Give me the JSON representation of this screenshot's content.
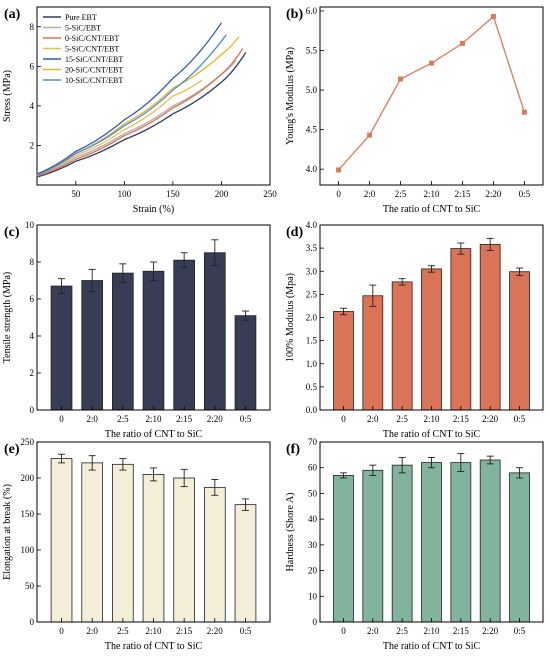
{
  "chart_data": [
    {
      "panel": "(a)",
      "type": "line",
      "xlabel": "Strain (%)",
      "ylabel": "Stress (MPa)",
      "xlim": [
        10,
        250
      ],
      "ylim": [
        0,
        9
      ],
      "xticks": [
        "50",
        "100",
        "150",
        "200",
        "250"
      ],
      "yticks": [
        "2",
        "4",
        "6",
        "8"
      ],
      "legend_position": "top-left",
      "series": [
        {
          "name": "Pure EBT",
          "color": "#2b3a67",
          "points": [
            [
              10,
              0.4
            ],
            [
              50,
              1.2
            ],
            [
              100,
              2.3
            ],
            [
              150,
              3.6
            ],
            [
              200,
              5.2
            ],
            [
              225,
              6.7
            ]
          ]
        },
        {
          "name": "5-SiC/EBT",
          "color": "#b0b0b0",
          "points": [
            [
              10,
              0.45
            ],
            [
              50,
              1.4
            ],
            [
              100,
              2.6
            ],
            [
              150,
              4.0
            ],
            [
              200,
              5.6
            ],
            [
              215,
              6.3
            ]
          ]
        },
        {
          "name": "0-SiC/CNT/EBT",
          "color": "#e07050",
          "points": [
            [
              10,
              0.45
            ],
            [
              50,
              1.3
            ],
            [
              100,
              2.5
            ],
            [
              150,
              3.9
            ],
            [
              200,
              5.6
            ],
            [
              222,
              6.9
            ]
          ]
        },
        {
          "name": "5-SiC/CNT/EBT",
          "color": "#e6c24a",
          "points": [
            [
              10,
              0.5
            ],
            [
              50,
              1.5
            ],
            [
              100,
              2.8
            ],
            [
              150,
              4.5
            ],
            [
              180,
              5.3
            ]
          ]
        },
        {
          "name": "15-SiC/CNT/EBT",
          "color": "#3a56b0",
          "points": [
            [
              10,
              0.55
            ],
            [
              50,
              1.7
            ],
            [
              100,
              3.3
            ],
            [
              150,
              5.4
            ],
            [
              200,
              8.2
            ]
          ]
        },
        {
          "name": "20-SiC/CNT/EBT",
          "color": "#e8b820",
          "points": [
            [
              10,
              0.5
            ],
            [
              50,
              1.6
            ],
            [
              100,
              3.1
            ],
            [
              150,
              4.9
            ],
            [
              200,
              6.6
            ],
            [
              218,
              7.5
            ]
          ]
        },
        {
          "name": "10-SiC/CNT/EBT",
          "color": "#4f8fd0",
          "points": [
            [
              10,
              0.5
            ],
            [
              50,
              1.6
            ],
            [
              100,
              3.0
            ],
            [
              150,
              4.8
            ],
            [
              205,
              7.6
            ]
          ]
        }
      ]
    },
    {
      "panel": "(b)",
      "type": "line",
      "categories": [
        "0",
        "2:0",
        "2:5",
        "2:10",
        "2:15",
        "2:20",
        "0:5"
      ],
      "values": [
        3.99,
        4.43,
        5.14,
        5.34,
        5.59,
        5.93,
        4.72
      ],
      "xlabel": "The ratio of CNT to SiC",
      "ylabel": "Young's Modulus (MPa)",
      "ylim": [
        3.8,
        6.05
      ],
      "yticks": [
        "4.0",
        "4.5",
        "5.0",
        "5.5",
        "6.0"
      ],
      "color": "#e0795a"
    },
    {
      "panel": "(c)",
      "type": "bar",
      "categories": [
        "0",
        "2:0",
        "2:5",
        "2:10",
        "2:15",
        "2:20",
        "0:5"
      ],
      "values": [
        6.7,
        7.0,
        7.4,
        7.5,
        8.1,
        8.5,
        5.1
      ],
      "errors": [
        0.4,
        0.6,
        0.5,
        0.5,
        0.4,
        0.7,
        0.25
      ],
      "xlabel": "The ratio of CNT to SiC",
      "ylabel": "Tensile strength (MPa)",
      "ylim": [
        0,
        10
      ],
      "yticks": [
        "0",
        "2",
        "4",
        "6",
        "8",
        "10"
      ],
      "color": "#373d55"
    },
    {
      "panel": "(d)",
      "type": "bar",
      "categories": [
        "0",
        "2:0",
        "2:5",
        "2:10",
        "2:15",
        "2:20",
        "0:5"
      ],
      "values": [
        2.13,
        2.47,
        2.77,
        3.05,
        3.49,
        3.58,
        2.99
      ],
      "errors": [
        0.07,
        0.23,
        0.07,
        0.07,
        0.12,
        0.13,
        0.08
      ],
      "xlabel": "The ratio of CNT to SiC",
      "ylabel": "100% Modulus (Mpa)",
      "ylim": [
        0,
        4
      ],
      "yticks": [
        "0.0",
        "0.5",
        "1.0",
        "1.5",
        "2.0",
        "2.5",
        "3.0",
        "3.5",
        "4.0"
      ],
      "color": "#db7456"
    },
    {
      "panel": "(e)",
      "type": "bar",
      "categories": [
        "0",
        "2:0",
        "2:5",
        "2:10",
        "2:15",
        "2:20",
        "0:5"
      ],
      "values": [
        227,
        221,
        219,
        205,
        200,
        187,
        163
      ],
      "errors": [
        6,
        10,
        8,
        9,
        12,
        11,
        8
      ],
      "xlabel": "The ratio of CNT to SiC",
      "ylabel": "Elongation at break (%)",
      "ylim": [
        0,
        250
      ],
      "yticks": [
        "0",
        "50",
        "100",
        "150",
        "200",
        "250"
      ],
      "color": "#f3eed8"
    },
    {
      "panel": "(f)",
      "type": "bar",
      "categories": [
        "0",
        "2:0",
        "2:5",
        "2:10",
        "2:15",
        "2:20",
        "0:5"
      ],
      "values": [
        57,
        59,
        61,
        62,
        62,
        63,
        58
      ],
      "errors": [
        1,
        2,
        3,
        2,
        3.5,
        1.5,
        2
      ],
      "xlabel": "The ratio of CNT to SiC",
      "ylabel": "Hardness (Shore A)",
      "ylim": [
        0,
        70
      ],
      "yticks": [
        "0",
        "10",
        "20",
        "30",
        "40",
        "50",
        "60",
        "70"
      ],
      "color": "#82b39c"
    }
  ]
}
